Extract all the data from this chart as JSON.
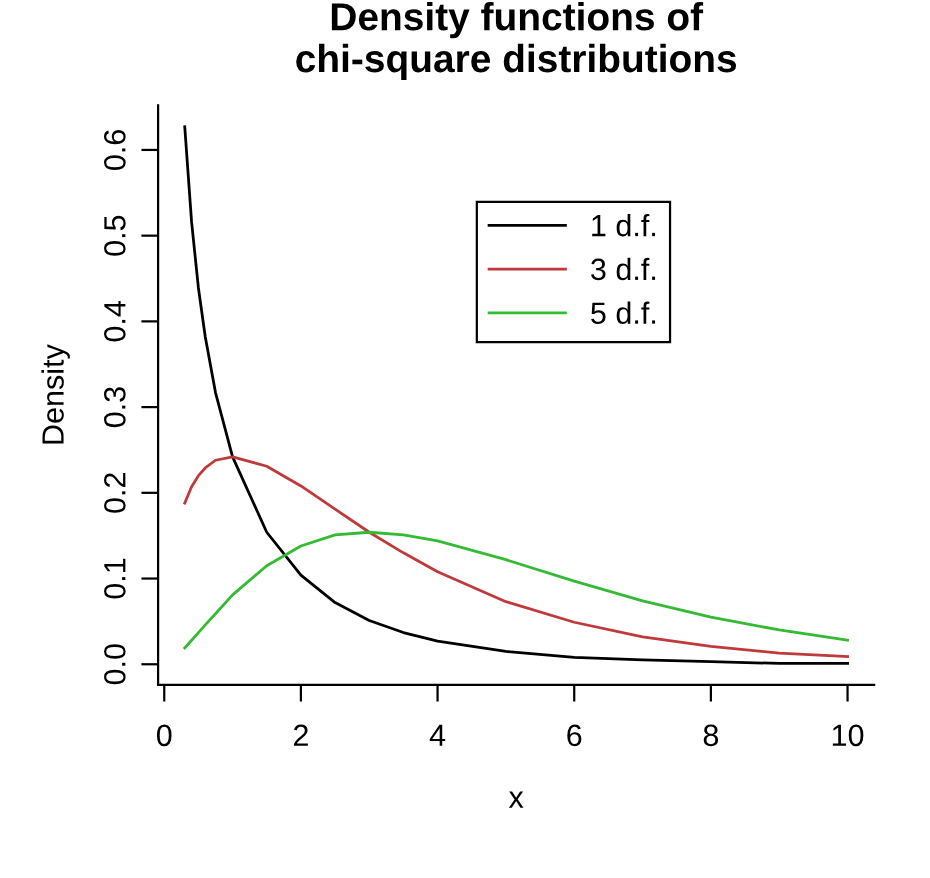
{
  "chart_data": {
    "type": "line",
    "title": "Density functions of\nchi-square distributions",
    "xlabel": "x",
    "ylabel": "Density",
    "x": [
      0.3,
      0.4,
      0.5,
      0.6,
      0.75,
      1,
      1.5,
      2,
      2.5,
      3,
      3.5,
      4,
      5,
      6,
      7,
      8,
      9,
      10
    ],
    "series": [
      {
        "name": "1 d.f.",
        "color": "#000000",
        "values": [
          0.627,
          0.516,
          0.439,
          0.382,
          0.317,
          0.242,
          0.154,
          0.104,
          0.072,
          0.051,
          0.037,
          0.027,
          0.015,
          0.008,
          0.005,
          0.003,
          0.001,
          0.001
        ]
      },
      {
        "name": "3 d.f.",
        "color": "#c0393b",
        "values": [
          0.188,
          0.207,
          0.22,
          0.229,
          0.238,
          0.242,
          0.231,
          0.208,
          0.181,
          0.154,
          0.13,
          0.108,
          0.073,
          0.049,
          0.032,
          0.021,
          0.013,
          0.009
        ]
      },
      {
        "name": "5 d.f.",
        "color": "#33bb33",
        "values": [
          0.019,
          0.028,
          0.037,
          0.046,
          0.059,
          0.081,
          0.115,
          0.138,
          0.151,
          0.154,
          0.151,
          0.144,
          0.122,
          0.097,
          0.074,
          0.055,
          0.04,
          0.028
        ]
      }
    ],
    "xlim": [
      -0.09,
      10.39
    ],
    "ylim": [
      -0.024,
      0.652
    ],
    "xticks": [
      0,
      2,
      4,
      6,
      8,
      10
    ],
    "yticks": [
      {
        "value": 0,
        "label": "0.0"
      },
      {
        "value": 0.1,
        "label": "0.1"
      },
      {
        "value": 0.2,
        "label": "0.2"
      },
      {
        "value": 0.3,
        "label": "0.3"
      },
      {
        "value": 0.4,
        "label": "0.4"
      },
      {
        "value": 0.5,
        "label": "0.5"
      },
      {
        "value": 0.6,
        "label": "0.6"
      }
    ],
    "grid": false,
    "legend": "top",
    "line_style": "solid",
    "marker": "none"
  }
}
